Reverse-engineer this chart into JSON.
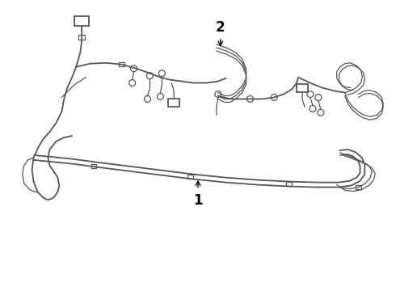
{
  "background_color": "#ffffff",
  "line_color": "#555555",
  "text_color": "#000000",
  "lw_main": 1.3,
  "lw_thin": 0.9,
  "label1": "1",
  "label2": "2",
  "figsize": [
    4.9,
    3.6
  ],
  "dpi": 100
}
